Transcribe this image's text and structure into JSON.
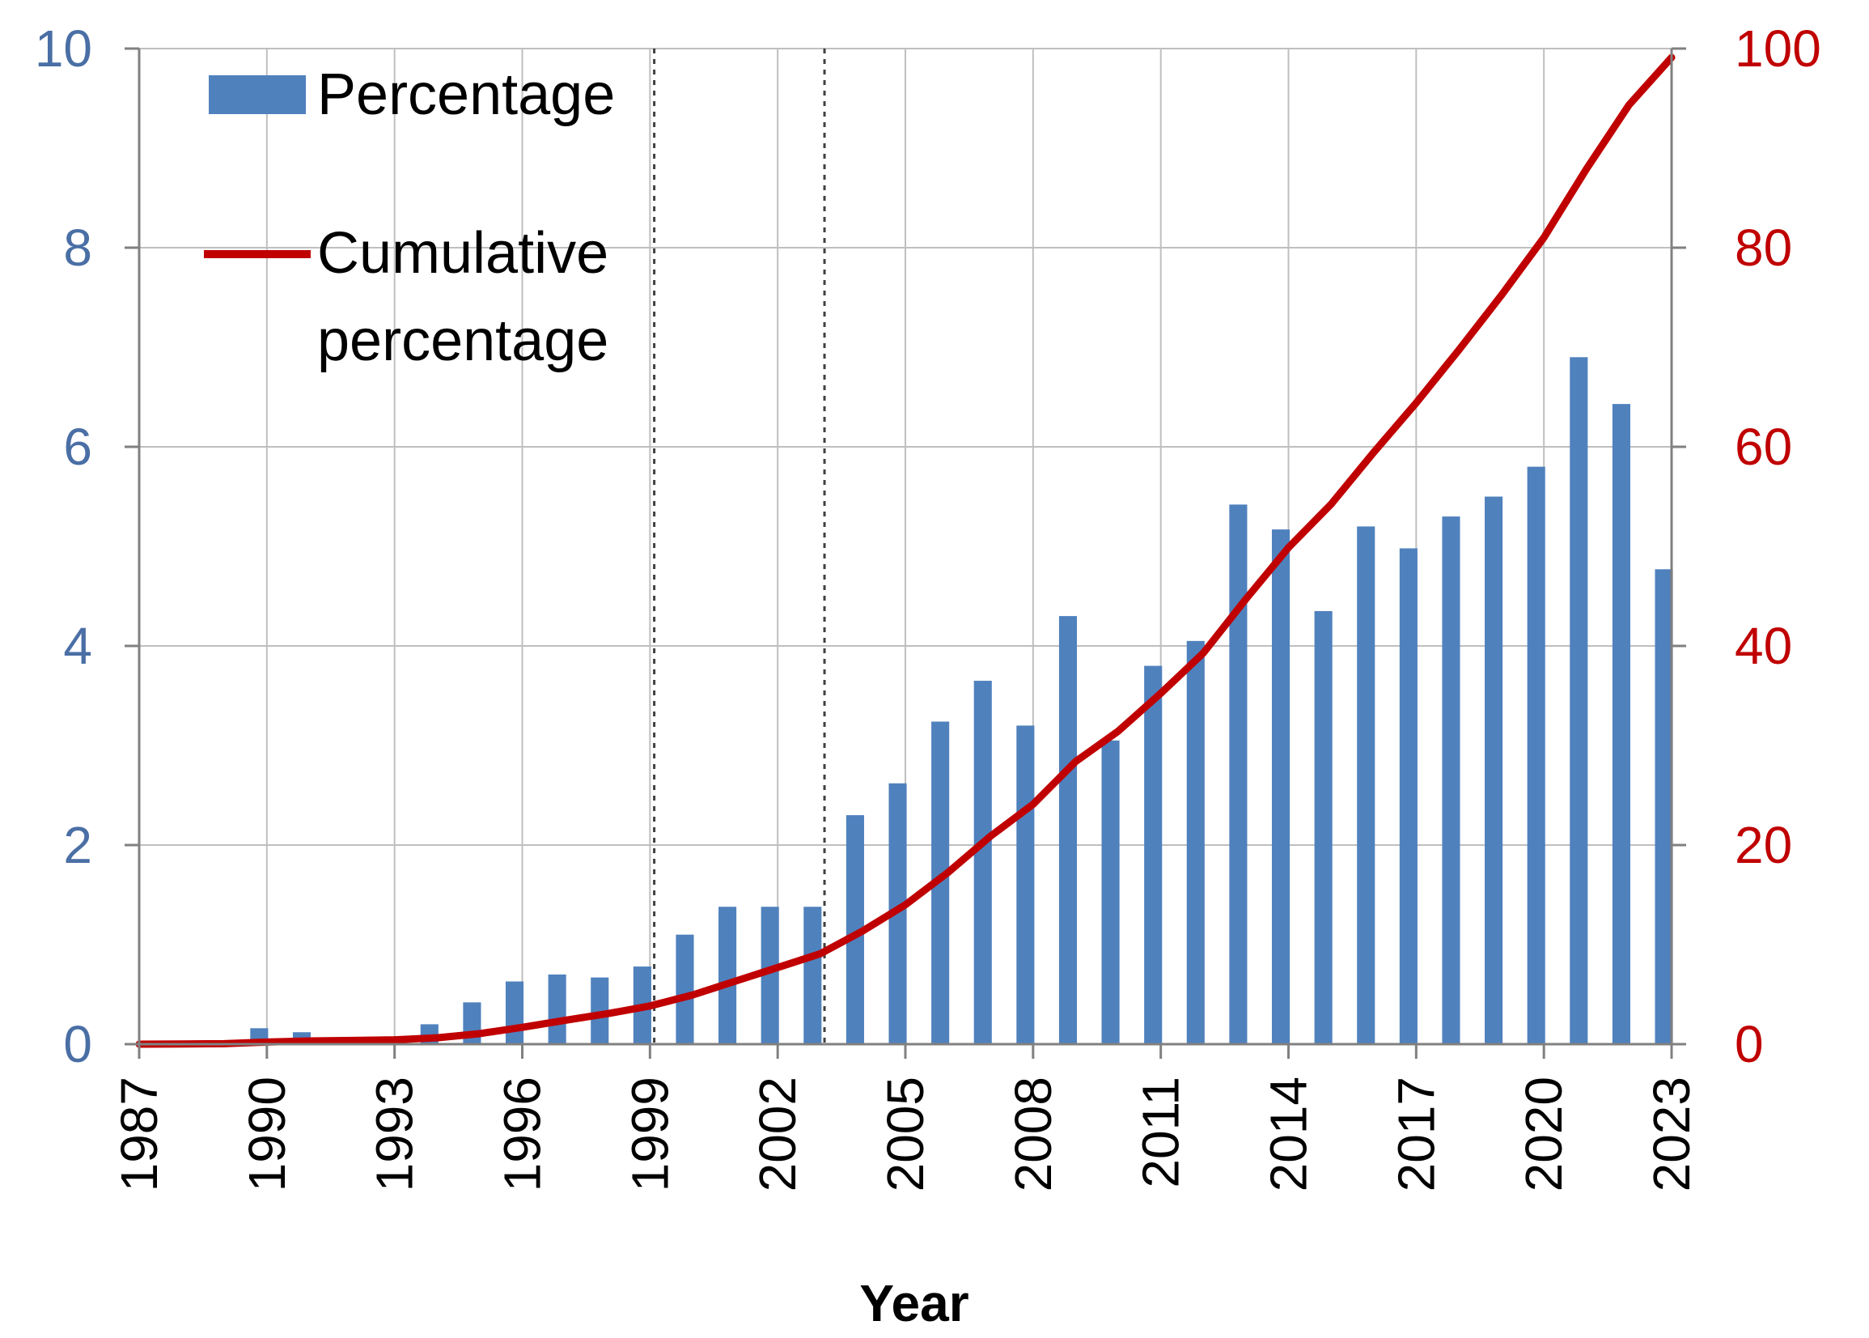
{
  "chart_data": {
    "type": "bar",
    "xlabel": "Year",
    "y_left_ticks": [
      "0",
      "2",
      "4",
      "6",
      "8",
      "10"
    ],
    "y_right_ticks": [
      "0",
      "20",
      "40",
      "60",
      "80",
      "100"
    ],
    "x_tick_labels": [
      "1987",
      "1990",
      "1993",
      "1996",
      "1999",
      "2002",
      "2005",
      "2008",
      "2011",
      "2014",
      "2017",
      "2020",
      "2023"
    ],
    "ylim_left": [
      0,
      10
    ],
    "ylim_right": [
      0,
      100
    ],
    "xlim": [
      1987,
      2023
    ],
    "colors": {
      "bar": "#4f81bd",
      "line": "#c00000",
      "left_axis": "#4a6fa5",
      "right_axis": "#c00000"
    },
    "reference_lines": [
      1999.1,
      2003.1
    ],
    "legend": {
      "percentage": "Percentage",
      "cumulative_line1": "Cumulative",
      "cumulative_line2": "percentage"
    },
    "series": [
      {
        "name": "Percentage",
        "axis": "left",
        "type": "bar",
        "x": [
          1988,
          1989,
          1990,
          1991,
          1992,
          1993,
          1994,
          1995,
          1996,
          1997,
          1998,
          1999,
          2000,
          2001,
          2002,
          2003,
          2004,
          2005,
          2006,
          2007,
          2008,
          2009,
          2010,
          2011,
          2012,
          2013,
          2014,
          2015,
          2016,
          2017,
          2018,
          2019,
          2020,
          2021,
          2022,
          2023
        ],
        "values": [
          0.02,
          0.03,
          0.16,
          0.12,
          0.05,
          0.06,
          0.2,
          0.42,
          0.63,
          0.7,
          0.67,
          0.78,
          1.1,
          1.38,
          1.38,
          1.38,
          2.3,
          2.62,
          3.24,
          3.65,
          3.2,
          4.3,
          3.05,
          3.8,
          4.05,
          5.42,
          5.17,
          4.35,
          5.2,
          4.98,
          5.3,
          5.5,
          5.8,
          6.9,
          6.43,
          4.77
        ]
      },
      {
        "name": "Cumulative percentage",
        "axis": "right",
        "type": "line",
        "x": [
          1987,
          1988,
          1989,
          1990,
          1991,
          1992,
          1993,
          1994,
          1995,
          1996,
          1997,
          1998,
          1999,
          2000,
          2001,
          2002,
          2003,
          2004,
          2005,
          2006,
          2007,
          2008,
          2009,
          2010,
          2011,
          2012,
          2013,
          2014,
          2015,
          2016,
          2017,
          2018,
          2019,
          2020,
          2021,
          2022,
          2023
        ],
        "values": [
          0,
          0.02,
          0.05,
          0.21,
          0.33,
          0.38,
          0.44,
          0.64,
          1.06,
          1.69,
          2.39,
          3.06,
          3.84,
          4.94,
          6.32,
          7.7,
          9.08,
          11.38,
          14,
          17.24,
          20.89,
          24.09,
          28.39,
          31.44,
          35.24,
          39.29,
          44.71,
          49.88,
          54.23,
          59.43,
          64.41,
          69.71,
          75.21,
          81.01,
          87.91,
          94.34,
          99.11
        ]
      }
    ]
  }
}
